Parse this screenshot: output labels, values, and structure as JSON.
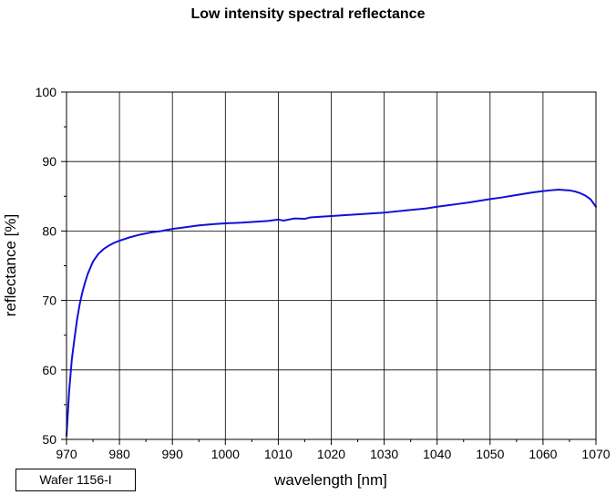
{
  "chart_data": {
    "type": "line",
    "title": "Low intensity spectral reflectance",
    "xlabel": "wavelength [nm]",
    "ylabel": "reflectance [%]",
    "xlim": [
      970,
      1070
    ],
    "ylim": [
      50,
      100
    ],
    "grid": true,
    "x_ticks": [
      970,
      980,
      990,
      1000,
      1010,
      1020,
      1030,
      1040,
      1050,
      1060,
      1070
    ],
    "y_ticks": [
      50,
      60,
      70,
      80,
      90,
      100
    ],
    "x_tick_labels": [
      "970",
      "980",
      "990",
      "1000",
      "1010",
      "1020",
      "1030",
      "1040",
      "1050",
      "1060",
      "1070"
    ],
    "y_tick_labels": [
      "50",
      "60",
      "70",
      "80",
      "90",
      "100"
    ],
    "series": [
      {
        "name": "Wafer 1156-I",
        "color": "#1010d8",
        "x": [
          970,
          970.5,
          971,
          971.5,
          972,
          972.5,
          973,
          973.5,
          974,
          975,
          976,
          977,
          978,
          979,
          980,
          982,
          984,
          986,
          988,
          990,
          992,
          995,
          998,
          1000,
          1003,
          1006,
          1008,
          1010,
          1011,
          1013,
          1015,
          1016,
          1018,
          1020,
          1022,
          1024,
          1026,
          1028,
          1030,
          1032,
          1034,
          1036,
          1038,
          1040,
          1042,
          1044,
          1046,
          1048,
          1050,
          1052,
          1054,
          1056,
          1058,
          1060,
          1062,
          1063,
          1064,
          1065,
          1066,
          1067,
          1068,
          1069,
          1070
        ],
        "values": [
          50.5,
          57.0,
          61.5,
          64.5,
          67.3,
          69.5,
          71.2,
          72.6,
          73.8,
          75.6,
          76.7,
          77.4,
          77.9,
          78.3,
          78.6,
          79.1,
          79.5,
          79.8,
          80.0,
          80.3,
          80.5,
          80.8,
          81.0,
          81.1,
          81.2,
          81.35,
          81.45,
          81.65,
          81.5,
          81.8,
          81.75,
          81.95,
          82.05,
          82.15,
          82.25,
          82.35,
          82.45,
          82.55,
          82.65,
          82.8,
          82.95,
          83.1,
          83.25,
          83.5,
          83.7,
          83.9,
          84.1,
          84.35,
          84.6,
          84.8,
          85.05,
          85.3,
          85.55,
          85.75,
          85.9,
          85.95,
          85.9,
          85.85,
          85.7,
          85.45,
          85.1,
          84.55,
          83.5
        ]
      }
    ],
    "legend": "bottom-left"
  }
}
